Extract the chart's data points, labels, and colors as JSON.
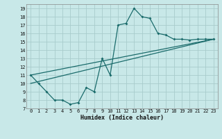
{
  "xlabel": "Humidex (Indice chaleur)",
  "xlim": [
    -0.5,
    23.5
  ],
  "ylim": [
    7,
    19.5
  ],
  "yticks": [
    7,
    8,
    9,
    10,
    11,
    12,
    13,
    14,
    15,
    16,
    17,
    18,
    19
  ],
  "xticks": [
    0,
    1,
    2,
    3,
    4,
    5,
    6,
    7,
    8,
    9,
    10,
    11,
    12,
    13,
    14,
    15,
    16,
    17,
    18,
    19,
    20,
    21,
    22,
    23
  ],
  "bg_color": "#c8e8e8",
  "grid_color": "#a8cccc",
  "line_color": "#1a6b6b",
  "line1_x": [
    0,
    1,
    2,
    3,
    4,
    5,
    6,
    7,
    8,
    9,
    10,
    11,
    12,
    13,
    14,
    15,
    16,
    17,
    18,
    19,
    20,
    21,
    22,
    23
  ],
  "line1_y": [
    11,
    10,
    9,
    8,
    8,
    7.5,
    7.7,
    9.5,
    9,
    13,
    11,
    17,
    17.2,
    19,
    18,
    17.8,
    16,
    15.8,
    15.3,
    15.3,
    15.2,
    15.3,
    15.3,
    15.3
  ],
  "line2_x": [
    0,
    23
  ],
  "line2_y": [
    11,
    15.3
  ],
  "line3_x": [
    0,
    23
  ],
  "line3_y": [
    10,
    15.3
  ]
}
